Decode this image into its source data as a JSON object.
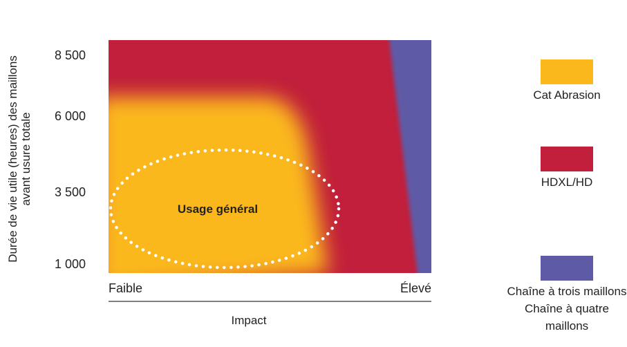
{
  "chart_data": {
    "type": "heatmap",
    "title": "",
    "ylabel_line1": "Durée de vie utile (heures) des maillons",
    "ylabel_line2": "avant usure totale",
    "xlabel": "Impact",
    "y_ticks": [
      "8 500",
      "6 000",
      "3 500",
      "1 000"
    ],
    "y_tick_values": [
      8500,
      6000,
      3500,
      1000
    ],
    "x_ticks": [
      "Faible",
      "Élevé"
    ],
    "regions": [
      {
        "name": "Cat Abrasion",
        "color": "#fbb81c"
      },
      {
        "name": "HDXL/HD",
        "color": "#c11f3b"
      },
      {
        "name": "Chaîne à trois maillons Chaîne à quatre maillons",
        "color": "#5e5aa6"
      }
    ],
    "annotation": "Usage général",
    "legend": [
      {
        "label_lines": [
          "Cat Abrasion"
        ],
        "color": "#fbb81c"
      },
      {
        "label_lines": [
          "HDXL/HD"
        ],
        "color": "#c11f3b"
      },
      {
        "label_lines": [
          "Chaîne à trois maillons",
          "Chaîne à quatre",
          "maillons"
        ],
        "color": "#5e5aa6"
      }
    ],
    "legend_position": "right"
  }
}
